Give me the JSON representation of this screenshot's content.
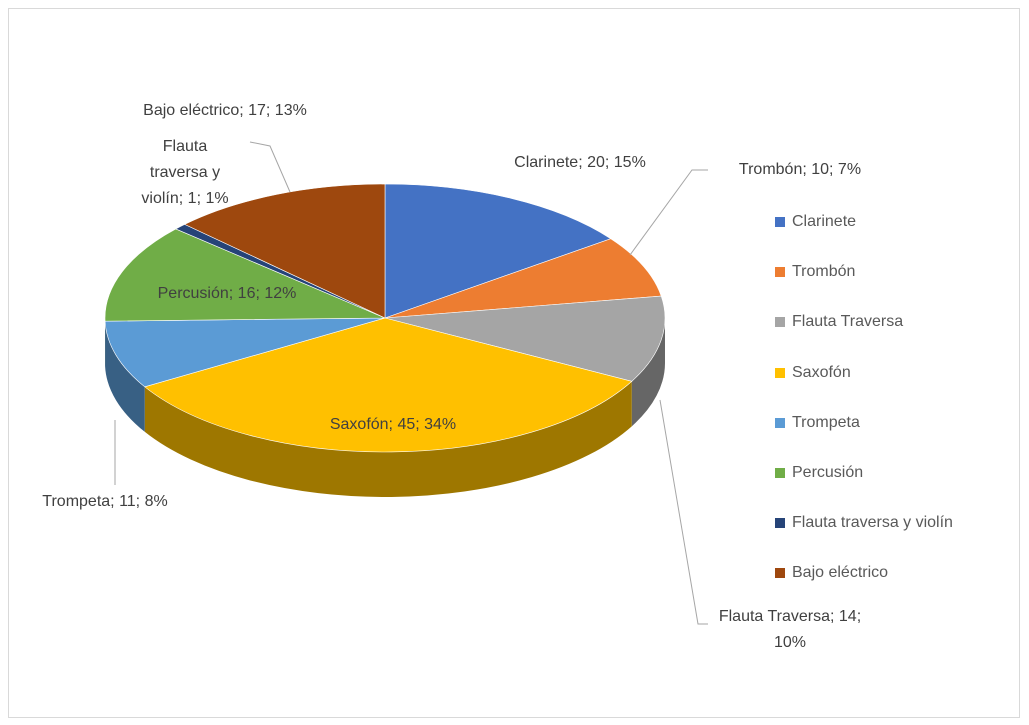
{
  "chart_data": {
    "type": "pie3d",
    "categories": [
      "Clarinete",
      "Trombón",
      "Flauta Traversa",
      "Saxofón",
      "Trompeta",
      "Percusión",
      "Flauta traversa y violín",
      "Bajo eléctrico"
    ],
    "values": [
      20,
      10,
      14,
      45,
      11,
      16,
      1,
      17
    ],
    "value_labels": [
      "Clarinete; 20; 15%",
      "Trombón; 10; 7%",
      "Flauta Traversa; 14; 10%",
      "Saxofón; 45; 34%",
      "Trompeta; 11; 8%",
      "Percusión; 16; 12%",
      "Flauta traversa y violín; 1; 1%",
      "Bajo eléctrico; 17; 13%"
    ],
    "colors": [
      "#4472c4",
      "#ed7d31",
      "#a5a5a5",
      "#ffc000",
      "#5b9bd5",
      "#70ad47",
      "#264478",
      "#9e480e"
    ],
    "legend": "right"
  }
}
